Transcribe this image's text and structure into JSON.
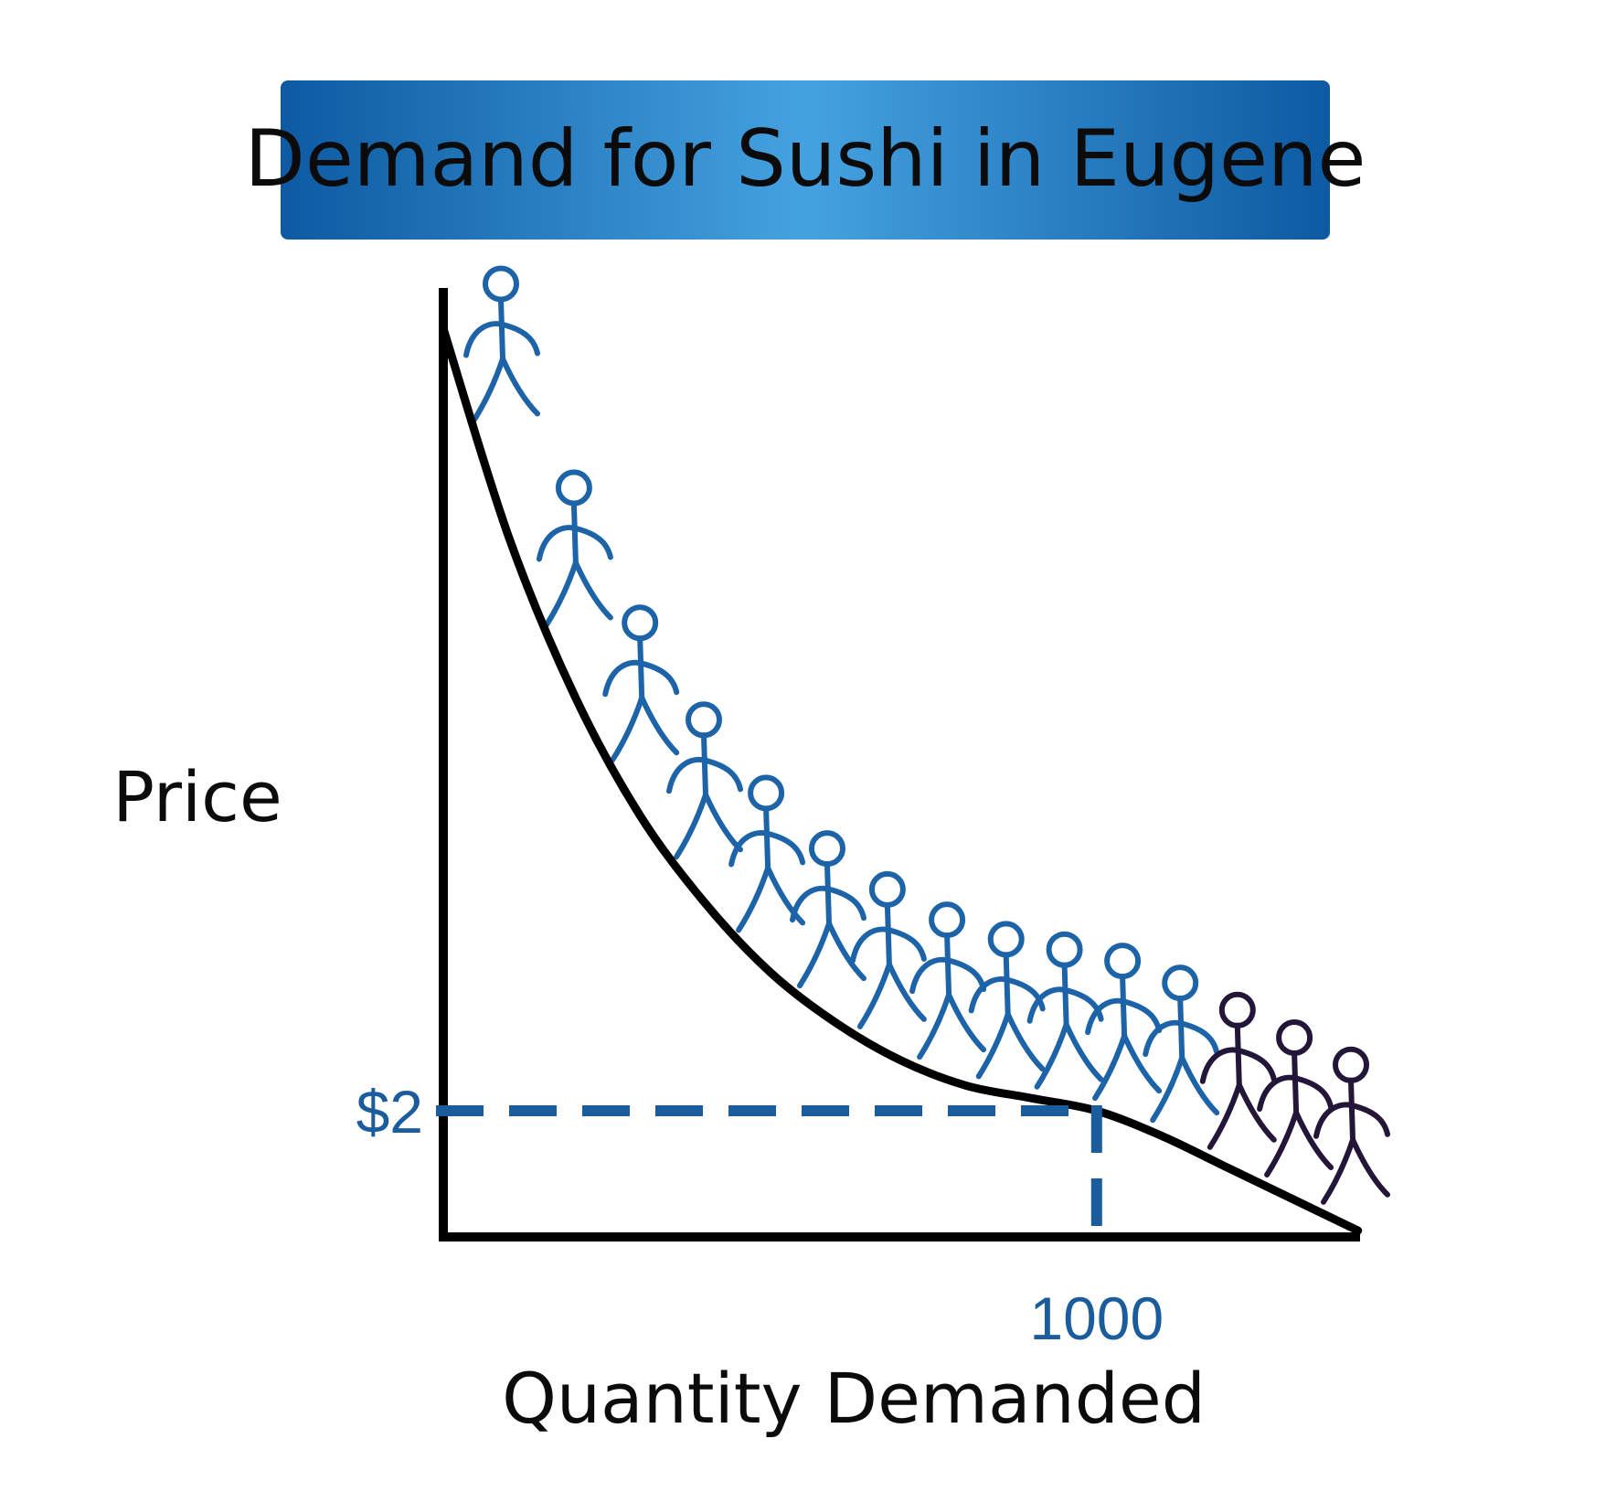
{
  "chart_data": {
    "type": "line",
    "title": "Demand for Sushi in Eugene",
    "xlabel": "Quantity Demanded",
    "ylabel": "Price",
    "y_tick_labels": [
      "$2"
    ],
    "x_tick_labels": [
      "1000"
    ],
    "marked_point": {
      "x": 1000,
      "y": 2
    },
    "series": [
      {
        "values_description_only": false,
        "x": [
          0,
          100,
          200,
          300,
          400,
          500,
          600,
          700,
          800,
          900,
          1000,
          1100,
          1200,
          1300,
          1400
        ],
        "y": [
          14.4,
          11.1,
          8.6,
          6.7,
          5.3,
          4.2,
          3.4,
          2.8,
          2.4,
          2.2,
          2.0,
          1.6,
          1.1,
          0.6,
          0.1
        ]
      }
    ],
    "xlim": [
      0,
      1420
    ],
    "ylim": [
      0,
      15
    ],
    "grid": false,
    "colors": {
      "curve": "#000000",
      "axes": "#000000",
      "guide": "#1a5c9c",
      "figures_blue": "#1d63a8",
      "figures_dark": "#231638",
      "banner_dark": "#0d5aa2",
      "banner_light": "#45a2e0"
    },
    "figures_count": 15,
    "figures_dark_count": 3
  }
}
